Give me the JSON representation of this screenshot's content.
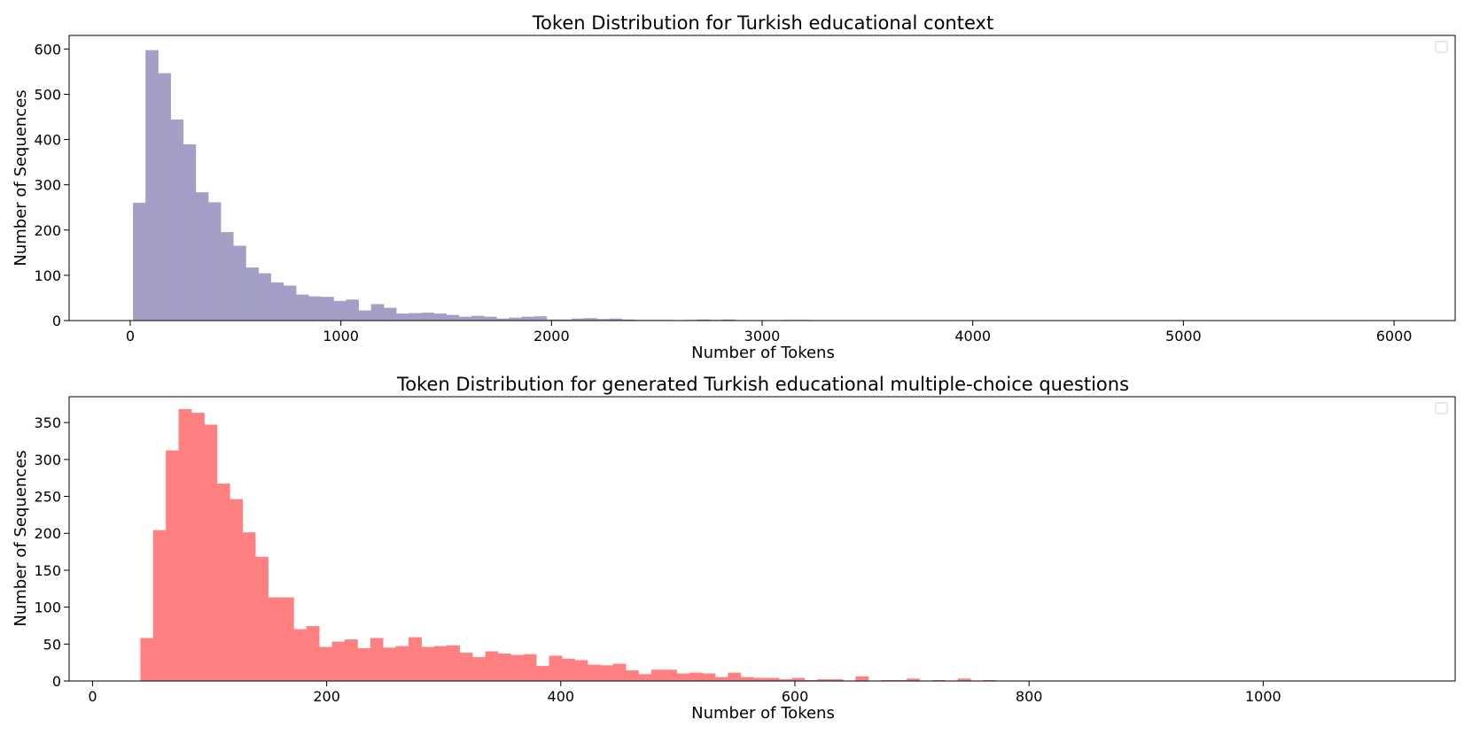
{
  "chart_data": [
    {
      "type": "bar",
      "title": "Token Distribution for Turkish educational context",
      "xlabel": "Number of Tokens",
      "ylabel": "Number of Sequences",
      "xlim": [
        -290,
        6290
      ],
      "ylim": [
        0,
        630
      ],
      "xticks": [
        0,
        1000,
        2000,
        3000,
        4000,
        5000,
        6000
      ],
      "yticks": [
        0,
        100,
        200,
        300,
        400,
        500,
        600
      ],
      "grid": false,
      "legend": "top-right, empty",
      "bar_color": "#a39fc7",
      "bin_width": 59.5,
      "x_start": 14,
      "values": [
        260,
        597,
        546,
        444,
        389,
        283,
        261,
        195,
        165,
        117,
        104,
        84,
        77,
        57,
        53,
        52,
        43,
        46,
        22,
        36,
        28,
        15,
        16,
        17,
        15,
        12,
        8,
        10,
        8,
        4,
        6,
        8,
        9,
        2,
        2,
        4,
        5,
        3,
        4,
        2,
        1,
        1,
        1,
        0,
        1,
        2,
        1,
        2,
        0,
        0,
        0,
        0,
        1,
        1,
        0,
        0,
        0,
        0,
        0,
        0,
        0,
        0,
        0,
        0,
        0,
        0,
        0,
        0,
        0,
        0,
        0,
        0,
        0,
        0,
        0,
        0,
        0,
        0,
        0,
        0,
        0,
        0,
        0,
        0,
        0,
        0,
        0,
        0,
        0,
        0,
        0,
        0,
        0,
        0,
        0,
        0,
        0,
        0,
        0,
        0
      ]
    },
    {
      "type": "bar",
      "title": "Token Distribution for generated Turkish educational multiple-choice questions",
      "xlabel": "Number of Tokens",
      "ylabel": "Number of Sequences",
      "xlim": [
        -20,
        1164
      ],
      "ylim": [
        0,
        385
      ],
      "xticks": [
        0,
        200,
        400,
        600,
        800,
        1000
      ],
      "yticks": [
        0,
        50,
        100,
        150,
        200,
        250,
        300,
        350
      ],
      "grid": false,
      "legend": "top-right, empty",
      "bar_color": "#ff8080",
      "bin_width": 10.91,
      "x_start": 41,
      "values": [
        58,
        204,
        312,
        368,
        363,
        347,
        267,
        246,
        201,
        168,
        113,
        113,
        70,
        74,
        46,
        53,
        56,
        44,
        58,
        45,
        47,
        59,
        46,
        47,
        48,
        38,
        32,
        40,
        37,
        35,
        36,
        20,
        34,
        30,
        28,
        22,
        21,
        23,
        14,
        9,
        15,
        15,
        10,
        11,
        10,
        5,
        11,
        5,
        4,
        4,
        2,
        4,
        1,
        2,
        2,
        0,
        6,
        0,
        1,
        1,
        3,
        0,
        1,
        0,
        3,
        0,
        1,
        0,
        0,
        0,
        0,
        0,
        0,
        0,
        0,
        0,
        0,
        0,
        0,
        0,
        0,
        0,
        0,
        0,
        0,
        0,
        0,
        0,
        0,
        0,
        0,
        0,
        0,
        0,
        0,
        0,
        0,
        0,
        0,
        0
      ]
    }
  ]
}
